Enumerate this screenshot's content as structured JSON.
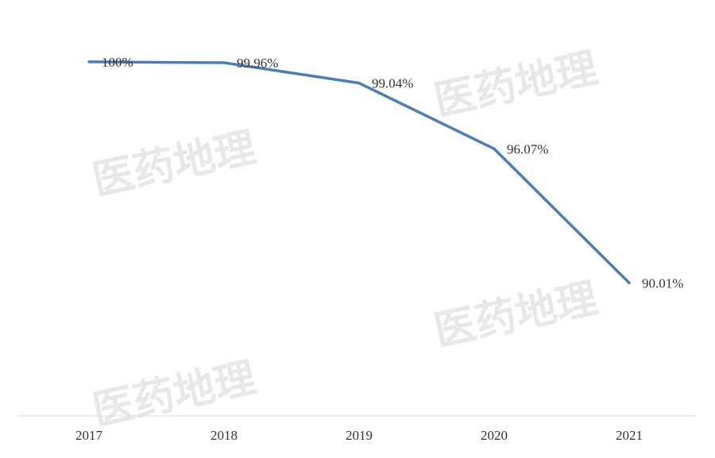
{
  "chart_data": {
    "type": "line",
    "categories": [
      "2017",
      "2018",
      "2019",
      "2020",
      "2021"
    ],
    "series": [
      {
        "color": "#4a7ebb",
        "values": [
          100,
          99.96,
          99.04,
          96.07,
          90.01
        ],
        "value_labels": [
          "100%",
          "99.96%",
          "99.04%",
          "96.07%",
          "90.01%"
        ]
      }
    ],
    "ylim": [
      84,
      101
    ]
  },
  "watermark": "医药地理"
}
